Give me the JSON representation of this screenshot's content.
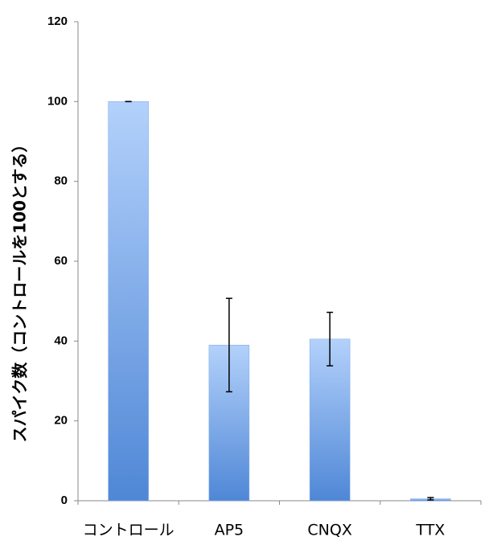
{
  "chart_data": {
    "type": "bar",
    "y_label": "スパイク数（コントロールを100とする）",
    "categories": [
      "コントロール",
      "AP5",
      "CNQX",
      "TTX"
    ],
    "values": [
      100,
      39,
      40.5,
      0.5
    ],
    "errors": [
      0,
      11.7,
      6.7,
      0.3
    ],
    "color": "#7aa9ea",
    "ylim": [
      0,
      120
    ],
    "yticks": [
      0,
      20,
      40,
      60,
      80,
      100,
      120
    ],
    "grid": false
  }
}
